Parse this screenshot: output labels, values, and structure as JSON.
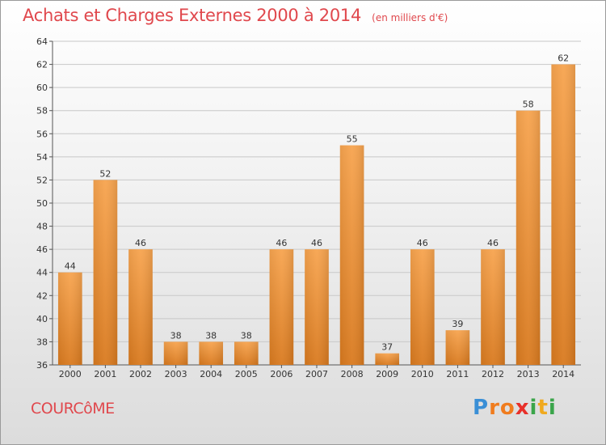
{
  "title": "Achats et Charges Externes 2000 à 2014",
  "subtitle": "(en milliers d'€)",
  "commune": "COURCôME",
  "logo": {
    "letters": [
      {
        "ch": "P",
        "color": "#3a8fd6"
      },
      {
        "ch": "r",
        "color": "#f07c1e"
      },
      {
        "ch": "o",
        "color": "#f07c1e"
      },
      {
        "ch": "x",
        "color": "#e8302a"
      },
      {
        "ch": "i",
        "color": "#3aa54a"
      },
      {
        "ch": "t",
        "color": "#f0a91e"
      },
      {
        "ch": "i",
        "color": "#3aa54a"
      }
    ]
  },
  "colors": {
    "bar_top": "#f7a44f",
    "bar_bottom": "#d97a1f",
    "axis": "#555555",
    "grid": "#c8c8c8",
    "text": "#333333",
    "accent": "#e0484d"
  },
  "chart_data": {
    "type": "bar",
    "title": "Achats et Charges Externes 2000 à 2014",
    "subtitle": "(en milliers d'€)",
    "xlabel": "",
    "ylabel": "",
    "categories": [
      "2000",
      "2001",
      "2002",
      "2003",
      "2004",
      "2005",
      "2006",
      "2007",
      "2008",
      "2009",
      "2010",
      "2011",
      "2012",
      "2013",
      "2014"
    ],
    "values": [
      44,
      52,
      46,
      38,
      38,
      38,
      46,
      46,
      55,
      37,
      46,
      39,
      46,
      58,
      62
    ],
    "ylim": [
      36,
      64
    ],
    "yticks": [
      36,
      38,
      40,
      42,
      44,
      46,
      48,
      50,
      52,
      54,
      56,
      58,
      60,
      62,
      64
    ],
    "grid": true,
    "legend": "none"
  }
}
